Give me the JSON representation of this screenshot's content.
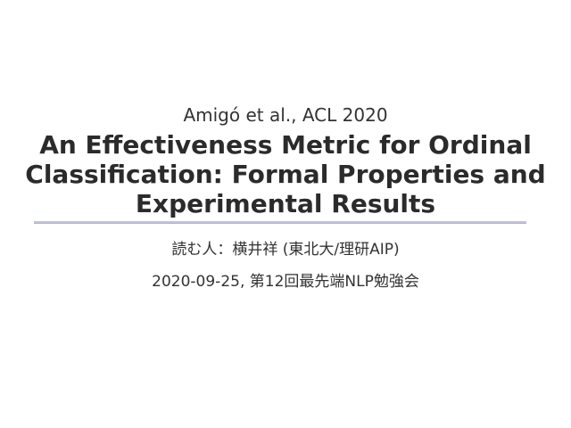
{
  "slide": {
    "citation": "Amigó et al., ACL 2020",
    "title": "An Effectiveness Metric for Ordinal Classification: Formal Properties and Experimental Results",
    "title_lines": [
      "An Effectiveness Metric for Ordinal",
      "Classification: Formal Properties and",
      "Experimental Results"
    ],
    "presenter": "読む人：横井祥 (東北大/理研AIP)",
    "event": "2020-09-25, 第12回最先端NLP勉強会",
    "colors": {
      "background": "#ffffff",
      "body_text": "#333333",
      "title_text": "#2b2b2b",
      "divider": "#c3c3da"
    }
  }
}
